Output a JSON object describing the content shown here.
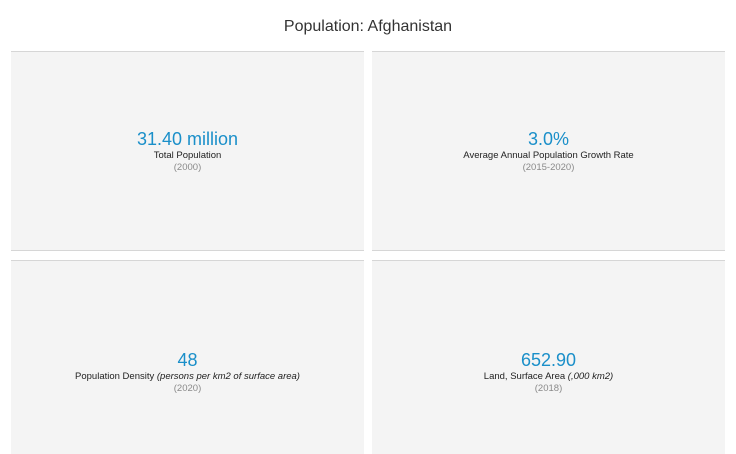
{
  "title": "Population: Afghanistan",
  "tiles": [
    {
      "value": "31.40 million",
      "label": "Total Population",
      "unit": "",
      "year": "(2000)"
    },
    {
      "value": "3.0%",
      "label": "Average Annual Population Growth Rate",
      "unit": "",
      "year": "(2015-2020)"
    },
    {
      "value": "48",
      "label": "Population Density",
      "unit": "(persons per km2 of surface area)",
      "year": "(2020)"
    },
    {
      "value": "652.90",
      "label": "Land, Surface Area",
      "unit": "(,000 km2)",
      "year": "(2018)"
    }
  ],
  "colors": {
    "value": "#1a8fc9",
    "tile_background": "#f4f4f4",
    "year_text": "#8a8a8a"
  }
}
